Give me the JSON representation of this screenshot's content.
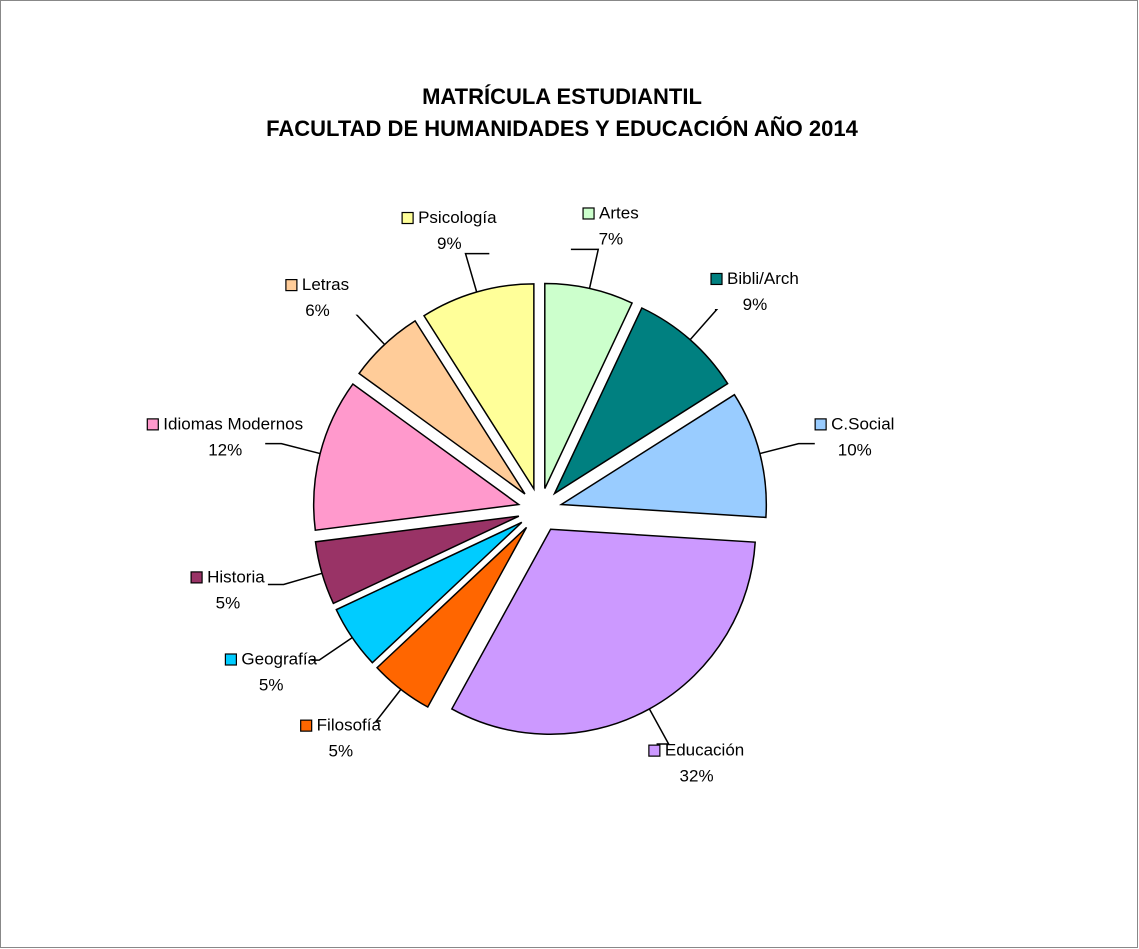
{
  "chart_data": {
    "type": "pie",
    "title": "MATRÍCULA ESTUDIANTIL",
    "subtitle": "FACULTAD DE HUMANIDADES Y EDUCACIÓN AÑO 2014",
    "categories": [
      "Artes",
      "Bibli/Arch",
      "C.Social",
      "Educación",
      "Filosofía",
      "Geografía",
      "Historia",
      "Idiomas Modernos",
      "Letras",
      "Psicología"
    ],
    "values": [
      7,
      9,
      10,
      32,
      5,
      5,
      5,
      12,
      6,
      9
    ],
    "value_labels": [
      "7%",
      "9%",
      "10%",
      "32%",
      "5%",
      "5%",
      "5%",
      "12%",
      "6%",
      "9%"
    ],
    "colors": [
      "#ccffcc",
      "#008080",
      "#99ccff",
      "#cc99ff",
      "#ff6600",
      "#00ccff",
      "#993366",
      "#ff99cc",
      "#ffcc99",
      "#ffff99"
    ]
  }
}
